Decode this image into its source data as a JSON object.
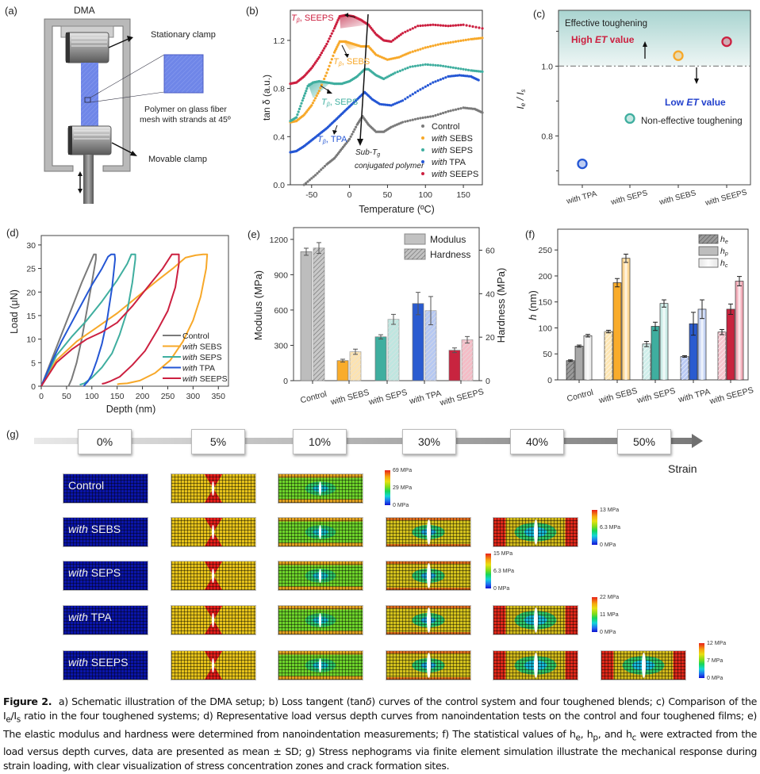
{
  "figure": {
    "panel_labels": [
      "(a)",
      "(b)",
      "(c)",
      "(d)",
      "(e)",
      "(f)",
      "(g)"
    ],
    "caption_title": "Figure 2.",
    "caption_parts": {
      "p1": "a) Schematic illustration of the DMA setup; b) Loss tangent (tan",
      "delta": "δ",
      "p2": ") curves of the control system and four toughened blends; c) Comparison of the I",
      "sub_e": "e",
      "slash": "/I",
      "sub_s": "s",
      "p3": " ratio in the four toughened systems; d) Representative load versus depth curves from nanoindentation tests on the control and four toughened films; e) The elastic modulus and hardness were determined from nanoindentation measurements; f) The statistical values of h",
      "sub_he": "e",
      "comma1": ", h",
      "sub_hp": "p",
      "comma2": ", and h",
      "sub_hc": "c",
      "p4": " were extracted from the load versus depth curves, data are presented as mean ± SD; g) Stress nephograms via finite element simulation illustrate the mechanical response during strain loading, with clear visualization of stress concentration zones and crack formation sites."
    }
  },
  "panel_a": {
    "title": "DMA",
    "labels": {
      "stationary": "Stationary clamp",
      "polymer_line1": "Polymer on glass fiber",
      "polymer_line2": "mesh with strands at 45º",
      "movable": "Movable clamp"
    }
  },
  "colors": {
    "control": "#7a7a7a",
    "sebs": "#f7a829",
    "seps": "#3fae9f",
    "tpa": "#2456d4",
    "seeps": "#cc2040"
  },
  "chart_data": [
    {
      "id": "b",
      "type": "scatter",
      "xlabel": "Temperature (ºC)",
      "ylabel": "tan δ (a.u.)",
      "xlim": [
        -78,
        175
      ],
      "ylim": [
        0.0,
        1.45
      ],
      "xticks": [
        -50,
        0,
        50,
        100,
        150
      ],
      "yticks": [
        0.0,
        0.4,
        0.8,
        1.2
      ],
      "legend_position": "bottom-right",
      "series": [
        {
          "key": "control",
          "name": "Control",
          "italic_prefix": "",
          "label_rest": "Control",
          "x": [
            -60,
            -45,
            -30,
            -20,
            -10,
            0,
            10,
            17,
            25,
            35,
            45,
            55,
            70,
            90,
            110,
            130,
            150,
            165,
            175
          ],
          "y": [
            0.0,
            0.08,
            0.17,
            0.22,
            0.3,
            0.38,
            0.5,
            0.57,
            0.5,
            0.44,
            0.44,
            0.48,
            0.52,
            0.55,
            0.57,
            0.61,
            0.64,
            0.63,
            0.6
          ]
        },
        {
          "key": "sebs",
          "name": "with SEBS",
          "italic_prefix": "with",
          "label_rest": " SEBS",
          "x": [
            -78,
            -70,
            -60,
            -50,
            -40,
            -30,
            -20,
            -13,
            -5,
            5,
            15,
            25,
            35,
            50,
            65,
            80,
            100,
            120,
            140,
            160,
            175
          ],
          "y": [
            0.52,
            0.53,
            0.58,
            0.66,
            0.78,
            0.93,
            1.1,
            1.19,
            1.19,
            1.17,
            1.15,
            1.15,
            1.08,
            1.04,
            1.06,
            1.1,
            1.14,
            1.17,
            1.19,
            1.21,
            1.22
          ]
        },
        {
          "key": "seps",
          "name": "with SEPS",
          "italic_prefix": "with",
          "label_rest": " SEPS",
          "x": [
            -78,
            -70,
            -62,
            -55,
            -48,
            -40,
            -30,
            -20,
            -10,
            0,
            10,
            20,
            25,
            35,
            45,
            60,
            80,
            100,
            120,
            140,
            160,
            175
          ],
          "y": [
            0.53,
            0.56,
            0.7,
            0.82,
            0.85,
            0.86,
            0.85,
            0.84,
            0.84,
            0.86,
            0.9,
            0.96,
            0.96,
            0.91,
            0.88,
            0.93,
            0.98,
            1.0,
            0.99,
            0.97,
            0.95,
            0.94
          ]
        },
        {
          "key": "tpa",
          "name": "with TPA",
          "italic_prefix": "with",
          "label_rest": " TPA",
          "x": [
            -78,
            -70,
            -60,
            -50,
            -40,
            -30,
            -20,
            -10,
            0,
            10,
            20,
            30,
            40,
            55,
            70,
            90,
            110,
            130,
            145,
            160,
            170
          ],
          "y": [
            0.27,
            0.28,
            0.32,
            0.37,
            0.42,
            0.47,
            0.53,
            0.59,
            0.65,
            0.71,
            0.77,
            0.71,
            0.67,
            0.66,
            0.7,
            0.78,
            0.85,
            0.9,
            0.91,
            0.9,
            0.87
          ]
        },
        {
          "key": "seeps",
          "name": "with SEEPS",
          "italic_prefix": "with",
          "label_rest": " SEEPS",
          "x": [
            -78,
            -70,
            -60,
            -50,
            -40,
            -30,
            -20,
            -13,
            -5,
            5,
            15,
            25,
            35,
            45,
            55,
            70,
            90,
            110,
            130,
            150,
            175
          ],
          "y": [
            0.84,
            0.85,
            0.9,
            0.97,
            1.06,
            1.17,
            1.3,
            1.4,
            1.41,
            1.4,
            1.37,
            1.33,
            1.25,
            1.2,
            1.19,
            1.26,
            1.32,
            1.33,
            1.32,
            1.33,
            1.3
          ]
        }
      ],
      "annotations": {
        "tb_seeps": "SEEPS",
        "tb_sebs": "SEBS",
        "tb_seps": "SEPS",
        "tb_tpa": "TPA",
        "sub_tg_line1": "Sub-T",
        "sub_tg_sub": "g",
        "sub_tg_line2": "conjugated polymer",
        "t_beta": "T",
        "beta": "β"
      }
    },
    {
      "id": "c",
      "type": "scatter",
      "ylabel": "Ie / Is",
      "ylim": [
        0.66,
        1.16
      ],
      "yticks": [
        0.8,
        1.0
      ],
      "categories": [
        "with TPA",
        "with SEPS",
        "with SEBS",
        "with SEEPS"
      ],
      "values": [
        0.72,
        0.85,
        1.03,
        1.07
      ],
      "point_keys": [
        "tpa",
        "seps",
        "sebs",
        "seeps"
      ],
      "threshold": 1.0,
      "annotations": {
        "effective": "Effective toughening",
        "high_pre": "High ",
        "high_et": "ET",
        "high_post": " value",
        "low_pre": "Low ",
        "low_et": "ET",
        "low_post": " value",
        "noneffective": "Non-effective toughening"
      }
    },
    {
      "id": "d",
      "type": "line",
      "xlabel": "Depth (nm)",
      "ylabel": "Load (μN)",
      "xlim": [
        0,
        370
      ],
      "ylim": [
        0,
        32
      ],
      "xticks": [
        0,
        50,
        100,
        150,
        200,
        250,
        300,
        350
      ],
      "yticks": [
        0,
        5,
        10,
        15,
        20,
        25,
        30
      ],
      "legend_position": "bottom-right",
      "series": [
        {
          "key": "control",
          "name": "Control",
          "italic_prefix": "",
          "label_rest": "Control",
          "x": [
            0,
            20,
            40,
            60,
            80,
            100,
            104,
            108,
            108,
            100,
            90,
            80,
            70,
            60,
            54
          ],
          "y": [
            0,
            5.5,
            11,
            16.5,
            22,
            27,
            28,
            28,
            27,
            22,
            16,
            10,
            5,
            1.5,
            0
          ]
        },
        {
          "key": "sebs",
          "name": "with SEBS",
          "italic_prefix": "with",
          "label_rest": " SEBS",
          "x": [
            0,
            30,
            70,
            110,
            150,
            190,
            230,
            260,
            285,
            305,
            320,
            328,
            326,
            315,
            300,
            280,
            255,
            225,
            195,
            170,
            155,
            150
          ],
          "y": [
            0,
            5.5,
            9.5,
            12.5,
            15.5,
            19,
            22.5,
            25,
            27.3,
            27.8,
            28,
            28,
            25,
            19,
            14,
            9.5,
            5.5,
            2.8,
            1.2,
            0.6,
            0.5,
            0.4
          ]
        },
        {
          "key": "seps",
          "name": "with SEPS",
          "italic_prefix": "with",
          "label_rest": " SEPS",
          "x": [
            0,
            30,
            60,
            90,
            120,
            150,
            170,
            178,
            186,
            186,
            180,
            170,
            155,
            140,
            120,
            100,
            85,
            76
          ],
          "y": [
            0,
            6.5,
            10.5,
            14,
            18,
            22.5,
            26,
            28,
            28,
            27,
            22,
            16,
            11,
            7,
            4,
            1.8,
            0.6,
            0.3
          ]
        },
        {
          "key": "tpa",
          "name": "with TPA",
          "italic_prefix": "with",
          "label_rest": " TPA",
          "x": [
            0,
            20,
            40,
            60,
            80,
            100,
            120,
            132,
            138,
            145,
            146,
            140,
            130,
            120,
            110,
            100,
            92,
            86,
            84
          ],
          "y": [
            0,
            5,
            9.5,
            13.5,
            17.5,
            21.5,
            25,
            27.5,
            28,
            28,
            27,
            21,
            14,
            9,
            5.5,
            2.5,
            1,
            0.3,
            0
          ]
        },
        {
          "key": "seeps",
          "name": "with SEEPS",
          "italic_prefix": "with",
          "label_rest": " SEEPS",
          "x": [
            0,
            30,
            60,
            90,
            120,
            150,
            180,
            210,
            240,
            258,
            266,
            272,
            272,
            265,
            250,
            230,
            205,
            180,
            155,
            135,
            125,
            120
          ],
          "y": [
            0,
            5,
            7.8,
            10,
            11.5,
            13.5,
            17,
            21,
            25,
            28,
            28,
            28,
            26,
            21,
            16,
            12,
            7.5,
            4.5,
            2,
            1,
            0.6,
            0.5
          ]
        }
      ]
    },
    {
      "id": "e",
      "type": "bar",
      "ylabel": "Modulus (MPa)",
      "y2label": "Hardness (MPa)",
      "ylim": [
        0,
        1300
      ],
      "y2lim": [
        0,
        70.4
      ],
      "yticks": [
        0,
        300,
        600,
        900,
        1200
      ],
      "y2ticks": [
        0,
        20,
        40,
        60
      ],
      "categories": [
        "Control",
        "with SEBS",
        "with SEPS",
        "with TPA",
        "with SEEPS"
      ],
      "category_keys": [
        "control",
        "sebs",
        "seps",
        "tpa",
        "seeps"
      ],
      "legend_position": "top-right",
      "series": [
        {
          "name": "Modulus",
          "axis": "left",
          "values": [
            1095,
            170,
            372,
            655,
            258
          ],
          "errors": [
            30,
            12,
            18,
            95,
            20
          ]
        },
        {
          "name": "Hardness",
          "axis": "right",
          "values": [
            61,
            13.3,
            28.2,
            32.2,
            18.8
          ],
          "errors": [
            2.5,
            1.2,
            2.3,
            6.5,
            1.5
          ]
        }
      ]
    },
    {
      "id": "f",
      "type": "bar",
      "ylabel": "h (nm)",
      "ylim": [
        0,
        290
      ],
      "yticks": [
        0,
        50,
        100,
        150,
        200,
        250
      ],
      "categories": [
        "Control",
        "with SEBS",
        "with SEPS",
        "with TPA",
        "with SEEPS"
      ],
      "category_keys": [
        "control",
        "sebs",
        "seps",
        "tpa",
        "seeps"
      ],
      "legend_position": "top-right",
      "series": [
        {
          "name": "he",
          "base": "h",
          "sub": "e",
          "values": [
            37,
            93,
            69,
            45,
            92
          ],
          "errors": [
            1.5,
            2.5,
            5,
            1.5,
            5
          ]
        },
        {
          "name": "hp",
          "base": "h",
          "sub": "p",
          "values": [
            65,
            187,
            103,
            108,
            136
          ],
          "errors": [
            2,
            8,
            8,
            22,
            10
          ]
        },
        {
          "name": "hc",
          "base": "h",
          "sub": "c",
          "values": [
            85,
            234,
            147,
            136,
            190
          ],
          "errors": [
            2.5,
            8,
            7,
            18,
            9
          ]
        }
      ]
    }
  ],
  "panel_g": {
    "strain_steps": [
      "0%",
      "5%",
      "10%",
      "30%",
      "40%",
      "50%"
    ],
    "strain_label": "Strain",
    "rows": [
      {
        "italic": "",
        "rest": "Control",
        "scale": [
          "69 MPa",
          "29 MPa",
          "0 MPa"
        ]
      },
      {
        "italic": "with",
        "rest": " SEBS",
        "scale": [
          "13 MPa",
          "6.3 MPa",
          "0 MPa"
        ]
      },
      {
        "italic": "with",
        "rest": " SEPS",
        "scale": [
          "15 MPa",
          "6.3 MPa",
          "0 MPa"
        ]
      },
      {
        "italic": "with",
        "rest": " TPA",
        "scale": [
          "22 MPa",
          "11 MPa",
          "0 MPa"
        ]
      },
      {
        "italic": "with",
        "rest": " SEEPS",
        "scale": [
          "12 MPa",
          "7 MPa",
          "0 MPa"
        ]
      }
    ]
  }
}
